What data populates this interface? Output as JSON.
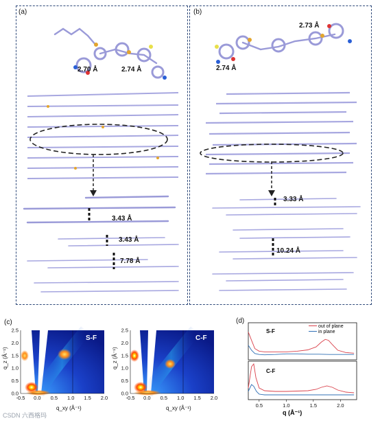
{
  "panels": {
    "a": {
      "label": "(a)",
      "contacts": [
        "2.70 Å",
        "2.74 Å"
      ],
      "spacings": [
        "3.43 Å",
        "3.43 Å",
        "7.78 Å"
      ]
    },
    "b": {
      "label": "(b)",
      "contacts": [
        "2.73 Å",
        "2.74 Å"
      ],
      "spacings": [
        "3.33 Å",
        "10.24 Å"
      ]
    },
    "c": {
      "label": "(c)",
      "maps": [
        {
          "name": "S-F",
          "xlabel": "q_xy (Å⁻¹)",
          "ylabel": "q_z (Å⁻¹)",
          "xticks": [
            "-0.5",
            "0.0",
            "0.5",
            "1.0",
            "1.5",
            "2.0"
          ],
          "yticks": [
            "0.0",
            "0.5",
            "1.0",
            "1.5",
            "2.0",
            "2.5"
          ]
        },
        {
          "name": "C-F",
          "xlabel": "q_xy (Å⁻¹)",
          "ylabel": "q_z (Å⁻¹)",
          "xticks": [
            "-0.5",
            "0.0",
            "0.5",
            "1.0",
            "1.5",
            "2.0"
          ],
          "yticks": [
            "0.0",
            "0.5",
            "1.0",
            "1.5",
            "2.0",
            "2.5"
          ]
        }
      ]
    },
    "d": {
      "label": "(d)"
    }
  },
  "watermark": "CSDN 六西格玛",
  "chart_data": {
    "type": "line",
    "xlabel": "q (Å⁻¹)",
    "xticks": [
      "0.5",
      "1.0",
      "1.5",
      "2.0"
    ],
    "xlim": [
      0.3,
      2.3
    ],
    "subplots": [
      {
        "name": "S-F",
        "legend_loc": "top-right",
        "series": [
          {
            "name": "out of plane",
            "color": "#d9404a",
            "x": [
              0.3,
              0.36,
              0.42,
              0.5,
              0.6,
              0.8,
              1.0,
              1.2,
              1.4,
              1.55,
              1.65,
              1.72,
              1.78,
              1.85,
              1.95,
              2.1,
              2.25
            ],
            "y": [
              0.8,
              0.55,
              0.3,
              0.22,
              0.2,
              0.2,
              0.2,
              0.22,
              0.26,
              0.35,
              0.5,
              0.58,
              0.55,
              0.42,
              0.25,
              0.18,
              0.16
            ]
          },
          {
            "name": "in plane",
            "color": "#2f6fb5",
            "x": [
              0.3,
              0.36,
              0.42,
              0.5,
              0.6,
              0.8,
              1.0,
              1.2,
              1.4,
              1.6,
              1.8,
              2.0,
              2.25
            ],
            "y": [
              0.4,
              0.25,
              0.15,
              0.12,
              0.11,
              0.12,
              0.14,
              0.14,
              0.13,
              0.13,
              0.12,
              0.12,
              0.12
            ]
          }
        ]
      },
      {
        "name": "C-F",
        "legend_loc": "none",
        "series": [
          {
            "name": "out of plane",
            "color": "#d9404a",
            "x": [
              0.3,
              0.36,
              0.4,
              0.44,
              0.5,
              0.6,
              0.8,
              1.0,
              1.2,
              1.4,
              1.55,
              1.65,
              1.75,
              1.85,
              1.95,
              2.1,
              2.25
            ],
            "y": [
              0.3,
              0.92,
              1.0,
              0.6,
              0.3,
              0.22,
              0.2,
              0.2,
              0.21,
              0.22,
              0.26,
              0.32,
              0.36,
              0.32,
              0.24,
              0.18,
              0.16
            ]
          },
          {
            "name": "in plane",
            "color": "#2f6fb5",
            "x": [
              0.3,
              0.36,
              0.4,
              0.45,
              0.5,
              0.6,
              0.8,
              1.0,
              1.2,
              1.4,
              1.6,
              1.8,
              2.0,
              2.25
            ],
            "y": [
              0.2,
              0.4,
              0.35,
              0.2,
              0.12,
              0.1,
              0.1,
              0.1,
              0.1,
              0.1,
              0.1,
              0.1,
              0.1,
              0.1
            ]
          }
        ]
      }
    ]
  }
}
